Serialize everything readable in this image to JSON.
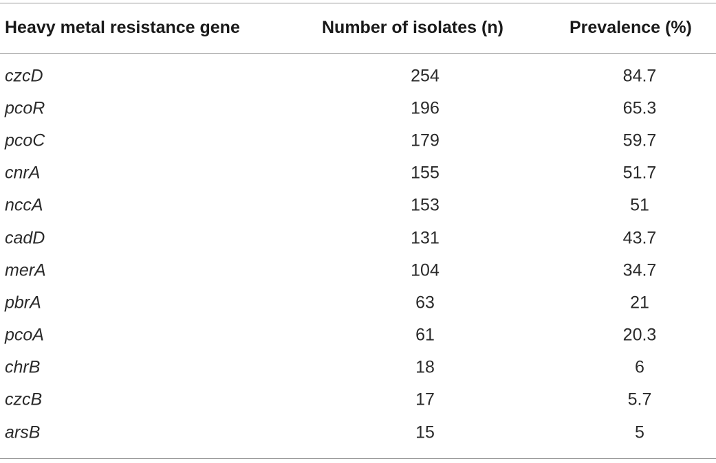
{
  "table": {
    "headers": {
      "gene": "Heavy metal resistance gene",
      "isolates": "Number of isolates (n)",
      "prevalence": "Prevalence (%)"
    },
    "rows": [
      {
        "gene": "czcD",
        "isolates": "254",
        "prevalence": "84.7"
      },
      {
        "gene": "pcoR",
        "isolates": "196",
        "prevalence": "65.3"
      },
      {
        "gene": "pcoC",
        "isolates": "179",
        "prevalence": "59.7"
      },
      {
        "gene": "cnrA",
        "isolates": "155",
        "prevalence": "51.7"
      },
      {
        "gene": "nccA",
        "isolates": "153",
        "prevalence": "51"
      },
      {
        "gene": "cadD",
        "isolates": "131",
        "prevalence": "43.7"
      },
      {
        "gene": "merA",
        "isolates": "104",
        "prevalence": "34.7"
      },
      {
        "gene": "pbrA",
        "isolates": "63",
        "prevalence": "21"
      },
      {
        "gene": "pcoA",
        "isolates": "61",
        "prevalence": "20.3"
      },
      {
        "gene": "chrB",
        "isolates": "18",
        "prevalence": "6"
      },
      {
        "gene": "czcB",
        "isolates": "17",
        "prevalence": "5.7"
      },
      {
        "gene": "arsB",
        "isolates": "15",
        "prevalence": "5"
      }
    ]
  }
}
